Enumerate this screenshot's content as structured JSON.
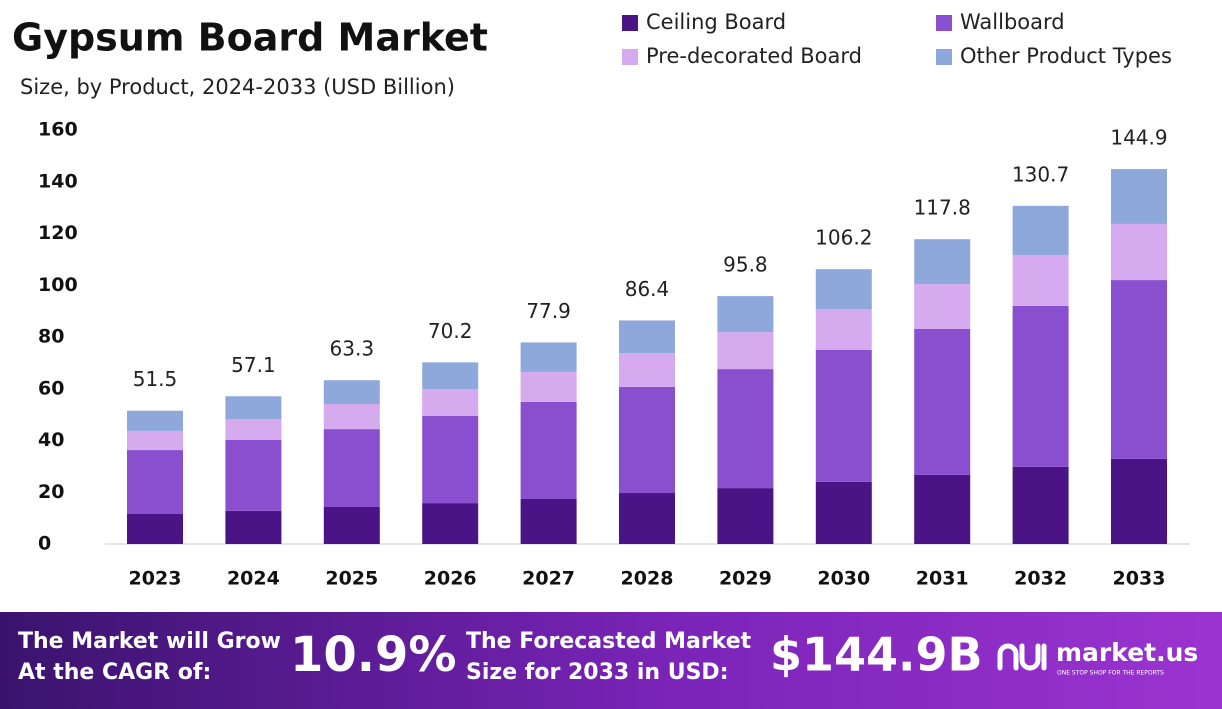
{
  "chart_data": {
    "type": "stacked-bar",
    "title": "Gypsum Board Market",
    "subtitle": "Size, by Product, 2024-2033 (USD Billion)",
    "categories": [
      "2023",
      "2024",
      "2025",
      "2026",
      "2027",
      "2028",
      "2029",
      "2030",
      "2031",
      "2032",
      "2033"
    ],
    "series": [
      {
        "name": "Ceiling Board",
        "color": "#4a1486",
        "values": [
          11.6,
          12.8,
          14.3,
          15.8,
          17.4,
          19.7,
          21.6,
          24.0,
          26.7,
          29.8,
          32.9
        ]
      },
      {
        "name": "Wallboard",
        "color": "#8a4fcf",
        "values": [
          24.7,
          27.4,
          30.1,
          33.7,
          37.5,
          41.0,
          46.0,
          51.0,
          56.4,
          62.2,
          69.1
        ]
      },
      {
        "name": "Pre-decorated Board",
        "color": "#d6aaee",
        "values": [
          7.4,
          8.1,
          9.7,
          10.4,
          11.6,
          13.1,
          14.3,
          15.8,
          17.4,
          19.7,
          21.7
        ]
      },
      {
        "name": "Other Product Types",
        "color": "#8fa8dc",
        "values": [
          7.8,
          8.8,
          9.2,
          10.3,
          11.4,
          12.6,
          13.9,
          15.4,
          17.3,
          19.0,
          21.2
        ]
      }
    ],
    "totals": [
      51.5,
      57.1,
      63.3,
      70.2,
      77.9,
      86.4,
      95.8,
      106.2,
      117.8,
      130.7,
      144.9
    ],
    "ylim": [
      0,
      160
    ],
    "yticks": [
      0,
      20,
      40,
      60,
      80,
      100,
      120,
      140,
      160
    ],
    "grid": false
  },
  "footer": {
    "cagr_label": [
      "The Market will Grow",
      "At the CAGR of:"
    ],
    "cagr_value": "10.9%",
    "forecast_label": [
      "The Forecasted Market",
      "Size for 2033 in USD:"
    ],
    "forecast_value": "$144.9B",
    "brand": "market.us",
    "tagline": "ONE STOP SHOP FOR THE REPORTS"
  }
}
